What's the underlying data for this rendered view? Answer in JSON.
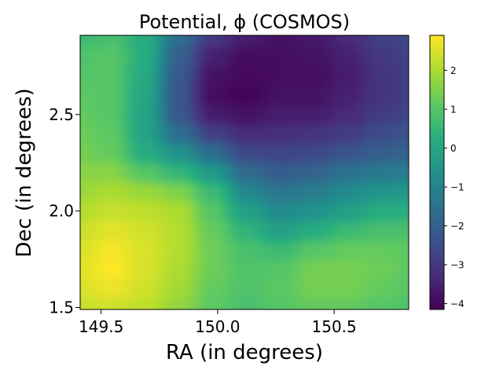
{
  "chart_data": {
    "type": "heatmap",
    "title": "Potential, ϕ (COSMOS)",
    "xlabel": "RA (in degrees)",
    "ylabel": "Dec (in degrees)",
    "xlim": [
      149.41,
      150.82
    ],
    "ylim": [
      1.49,
      2.91
    ],
    "xticks": [
      149.5,
      150.0,
      150.5
    ],
    "xtick_labels": [
      "149.5",
      "150.0",
      "150.5"
    ],
    "yticks": [
      1.5,
      2.0,
      2.5
    ],
    "ytick_labels": [
      "1.5",
      "2.0",
      "2.5"
    ],
    "colorbar": {
      "colormap": "viridis",
      "range": [
        -4.15,
        2.9
      ],
      "ticks": [
        -4,
        -3,
        -2,
        -1,
        0,
        1,
        2
      ],
      "tick_labels": [
        "−4",
        "−3",
        "−2",
        "−1",
        "0",
        "1",
        "2"
      ]
    },
    "grid": false,
    "field_samples": {
      "x": [
        149.4,
        149.55,
        149.7,
        149.85,
        150.0,
        150.15,
        150.3,
        150.45,
        150.6,
        150.75,
        150.85
      ],
      "y": [
        2.9,
        2.8,
        2.7,
        2.6,
        2.5,
        2.4,
        2.3,
        2.2,
        2.1,
        2.0,
        1.9,
        1.8,
        1.7,
        1.6,
        1.5
      ],
      "values": [
        [
          0.6,
          0.8,
          0.2,
          -1.6,
          -3.0,
          -3.6,
          -3.8,
          -3.7,
          -3.3,
          -2.8,
          -2.6
        ],
        [
          0.9,
          1.0,
          0.2,
          -2.0,
          -3.5,
          -3.9,
          -3.9,
          -3.8,
          -3.5,
          -3.0,
          -2.7
        ],
        [
          1.0,
          1.0,
          0.1,
          -2.2,
          -3.8,
          -4.0,
          -3.9,
          -3.9,
          -3.6,
          -3.1,
          -2.8
        ],
        [
          1.1,
          1.0,
          0.0,
          -2.3,
          -3.9,
          -4.1,
          -3.8,
          -3.8,
          -3.5,
          -3.1,
          -2.8
        ],
        [
          1.2,
          1.0,
          -0.1,
          -2.2,
          -3.6,
          -3.8,
          -3.6,
          -3.6,
          -3.3,
          -2.9,
          -2.6
        ],
        [
          1.3,
          1.1,
          -0.1,
          -1.6,
          -2.8,
          -3.3,
          -3.2,
          -3.1,
          -2.9,
          -2.5,
          -2.3
        ],
        [
          1.4,
          1.2,
          0.2,
          -0.6,
          -1.6,
          -2.6,
          -2.7,
          -2.6,
          -2.3,
          -2.0,
          -1.9
        ],
        [
          1.6,
          1.6,
          1.0,
          0.5,
          -0.4,
          -1.7,
          -2.1,
          -1.9,
          -1.5,
          -1.3,
          -1.2
        ],
        [
          1.8,
          2.0,
          1.8,
          1.5,
          0.6,
          -0.9,
          -1.4,
          -1.2,
          -0.8,
          -0.5,
          -0.4
        ],
        [
          2.1,
          2.3,
          2.2,
          2.0,
          1.0,
          -0.2,
          -0.8,
          -0.6,
          -0.2,
          0.2,
          0.3
        ],
        [
          2.3,
          2.6,
          2.4,
          2.1,
          1.2,
          0.4,
          -0.2,
          0.2,
          0.6,
          0.8,
          0.8
        ],
        [
          2.5,
          2.8,
          2.5,
          2.1,
          1.3,
          0.8,
          0.6,
          1.0,
          1.2,
          1.2,
          1.1
        ],
        [
          2.6,
          2.9,
          2.5,
          2.0,
          1.3,
          0.9,
          1.0,
          1.4,
          1.4,
          1.3,
          1.1
        ],
        [
          2.5,
          2.7,
          2.4,
          1.9,
          1.2,
          0.9,
          1.1,
          1.4,
          1.4,
          1.2,
          1.0
        ],
        [
          2.3,
          2.4,
          2.2,
          1.7,
          1.1,
          0.8,
          1.0,
          1.2,
          1.2,
          1.0,
          0.9
        ]
      ]
    }
  }
}
